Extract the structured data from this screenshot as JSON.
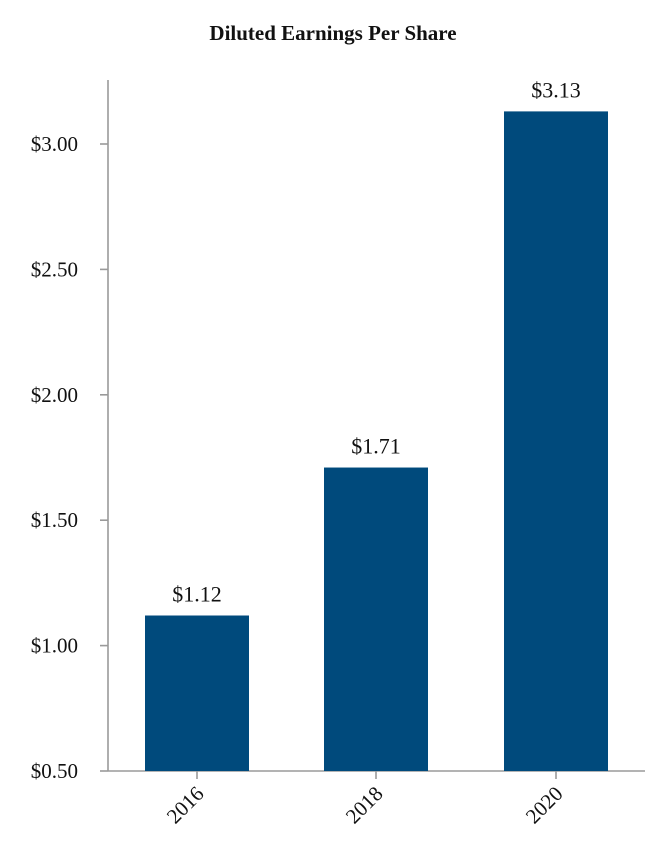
{
  "chart_data": {
    "type": "bar",
    "title": "Diluted Earnings Per Share",
    "xlabel": "",
    "ylabel": "",
    "categories": [
      "2016",
      "2018",
      "2020"
    ],
    "values": [
      1.12,
      1.71,
      3.13
    ],
    "data_labels": [
      "$1.12",
      "$1.71",
      "$3.13"
    ],
    "ylim": [
      0.5,
      3.25
    ],
    "yticks": [
      0.5,
      1.0,
      1.5,
      2.0,
      2.5,
      3.0
    ],
    "ytick_labels": [
      "$0.50",
      "$1.00",
      "$1.50",
      "$2.00",
      "$2.50",
      "$3.00"
    ],
    "bar_color": "#004a7c",
    "grid": false,
    "legend": "none"
  }
}
